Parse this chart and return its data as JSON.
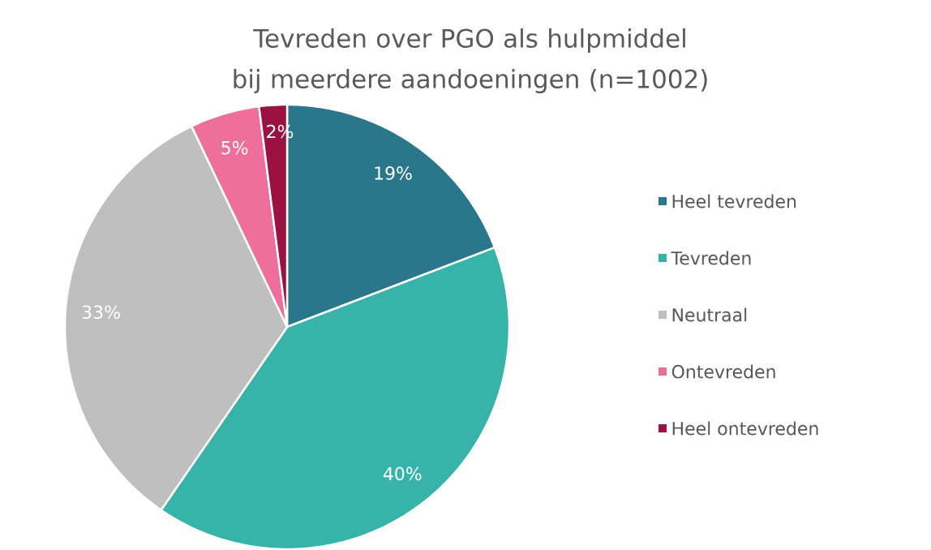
{
  "chart_data": {
    "type": "pie",
    "title": "Tevreden over PGO als hulpmiddel\nbij meerdere aandoeningen  (n=1002)",
    "categories": [
      "Heel tevreden",
      "Tevreden",
      "Neutraal",
      "Ontevreden",
      "Heel ontevreden"
    ],
    "values": [
      19,
      40,
      33,
      5,
      2
    ],
    "colors": [
      "#2a768a",
      "#38b3aa",
      "#bfbfbf",
      "#ee6f99",
      "#9b1240"
    ],
    "value_labels": [
      "19%",
      "40%",
      "33%",
      "5%",
      "2%"
    ],
    "legend": "right"
  }
}
